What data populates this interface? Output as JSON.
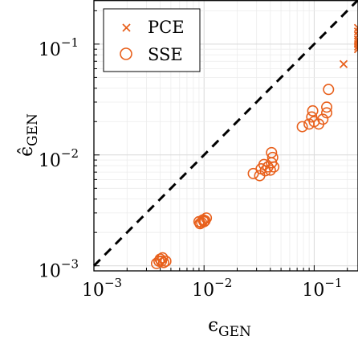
{
  "chart_data": {
    "type": "scatter",
    "xscale": "log",
    "yscale": "log",
    "xlim": [
      0.001,
      0.25
    ],
    "ylim": [
      0.0009,
      0.25
    ],
    "xticks": [
      0.001,
      0.01,
      0.1
    ],
    "yticks": [
      0.001,
      0.01,
      0.1
    ],
    "xtick_labels": [
      {
        "base": "10",
        "exp": "−3"
      },
      {
        "base": "10",
        "exp": "−2"
      },
      {
        "base": "10",
        "exp": "−1"
      }
    ],
    "ytick_labels": [
      {
        "base": "10",
        "exp": "−3"
      },
      {
        "base": "10",
        "exp": "−2"
      },
      {
        "base": "10",
        "exp": "−1"
      }
    ],
    "xlabel": {
      "symbol": "ϵ",
      "sub": "GEN"
    },
    "ylabel": {
      "symbol": "ϵ̂",
      "sub": "GEN"
    },
    "grid": true,
    "legend_position": "top-left",
    "reference_line": {
      "style": "dashed",
      "color": "#000000",
      "relation": "y = x"
    },
    "series": [
      {
        "name": "PCE",
        "marker": "x",
        "color": "#e8601c",
        "points": [
          [
            0.185,
            0.066
          ],
          [
            0.25,
            0.14
          ],
          [
            0.25,
            0.13
          ],
          [
            0.25,
            0.12
          ],
          [
            0.25,
            0.11
          ],
          [
            0.25,
            0.105
          ],
          [
            0.25,
            0.1
          ],
          [
            0.25,
            0.095
          ],
          [
            0.25,
            0.09
          ]
        ]
      },
      {
        "name": "SSE",
        "marker": "o",
        "color": "#e8601c",
        "points": [
          [
            0.0037,
            0.00105
          ],
          [
            0.0039,
            0.0011
          ],
          [
            0.004,
            0.00115
          ],
          [
            0.0042,
            0.00118
          ],
          [
            0.0041,
            0.0011
          ],
          [
            0.0045,
            0.0011
          ],
          [
            0.0043,
            0.00107
          ],
          [
            0.009,
            0.0025
          ],
          [
            0.0095,
            0.00245
          ],
          [
            0.0098,
            0.0026
          ],
          [
            0.01,
            0.0025
          ],
          [
            0.0105,
            0.0027
          ],
          [
            0.0092,
            0.0024
          ],
          [
            0.0102,
            0.00255
          ],
          [
            0.028,
            0.0068
          ],
          [
            0.032,
            0.0065
          ],
          [
            0.033,
            0.0075
          ],
          [
            0.035,
            0.0082
          ],
          [
            0.038,
            0.0078
          ],
          [
            0.04,
            0.0073
          ],
          [
            0.041,
            0.0085
          ],
          [
            0.042,
            0.0095
          ],
          [
            0.041,
            0.0105
          ],
          [
            0.043,
            0.0078
          ],
          [
            0.036,
            0.0072
          ],
          [
            0.078,
            0.018
          ],
          [
            0.09,
            0.019
          ],
          [
            0.095,
            0.022
          ],
          [
            0.097,
            0.025
          ],
          [
            0.1,
            0.02
          ],
          [
            0.12,
            0.021
          ],
          [
            0.13,
            0.024
          ],
          [
            0.13,
            0.027
          ],
          [
            0.135,
            0.039
          ],
          [
            0.11,
            0.019
          ]
        ]
      }
    ]
  }
}
